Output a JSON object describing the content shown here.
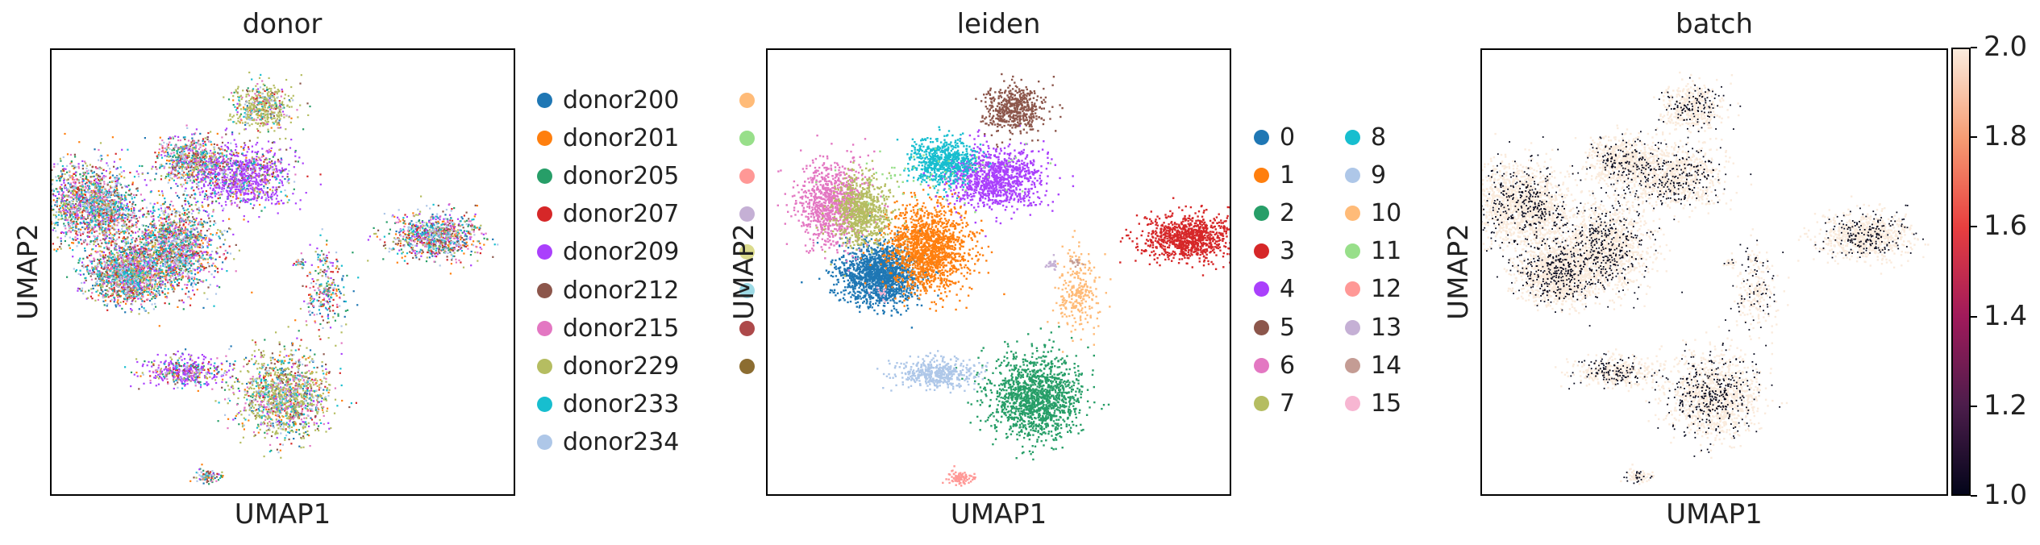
{
  "panels": [
    {
      "title": "donor",
      "xlabel": "UMAP1",
      "ylabel": "UMAP2"
    },
    {
      "title": "leiden",
      "xlabel": "UMAP1",
      "ylabel": "UMAP2"
    },
    {
      "title": "batch",
      "xlabel": "UMAP1",
      "ylabel": "UMAP2"
    }
  ],
  "donor_legend": [
    {
      "label": "donor200",
      "color": "#1f77b4"
    },
    {
      "label": "donor201",
      "color": "#ff7f0e"
    },
    {
      "label": "donor205",
      "color": "#279e68"
    },
    {
      "label": "donor207",
      "color": "#d62728"
    },
    {
      "label": "donor209",
      "color": "#aa40fc"
    },
    {
      "label": "donor212",
      "color": "#8c564b"
    },
    {
      "label": "donor215",
      "color": "#e377c2"
    },
    {
      "label": "donor229",
      "color": "#b5bd61"
    },
    {
      "label": "donor233",
      "color": "#17becf"
    },
    {
      "label": "donor234",
      "color": "#aec7e8"
    }
  ],
  "donor_legend_cut_colors": [
    "#ffbb78",
    "#98df8a",
    "#ff9896",
    "#c5b0d5",
    "#dbdb8d",
    "#9edae5",
    "#ad494a",
    "#8c6d31"
  ],
  "leiden_legend": [
    {
      "label": "0",
      "color": "#1f77b4"
    },
    {
      "label": "1",
      "color": "#ff7f0e"
    },
    {
      "label": "2",
      "color": "#279e68"
    },
    {
      "label": "3",
      "color": "#d62728"
    },
    {
      "label": "4",
      "color": "#aa40fc"
    },
    {
      "label": "5",
      "color": "#8c564b"
    },
    {
      "label": "6",
      "color": "#e377c2"
    },
    {
      "label": "7",
      "color": "#b5bd61"
    },
    {
      "label": "8",
      "color": "#17becf"
    },
    {
      "label": "9",
      "color": "#aec7e8"
    },
    {
      "label": "10",
      "color": "#ffbb78"
    },
    {
      "label": "11",
      "color": "#98df8a"
    },
    {
      "label": "12",
      "color": "#ff9896"
    },
    {
      "label": "13",
      "color": "#c5b0d5"
    },
    {
      "label": "14",
      "color": "#c49c94"
    },
    {
      "label": "15",
      "color": "#f7b6d2"
    }
  ],
  "colorbar": {
    "ticks": [
      "1.0",
      "1.2",
      "1.4",
      "1.6",
      "1.8",
      "2.0"
    ],
    "range": [
      1.0,
      2.0
    ],
    "colors_low_to_high": [
      "#03051a",
      "#4c1d4b",
      "#a11a5b",
      "#e83f3f",
      "#f69c73",
      "#faebdd"
    ]
  },
  "chart_data": [
    {
      "type": "scatter",
      "title": "donor",
      "xlabel": "UMAP1",
      "ylabel": "UMAP2",
      "xticks": [],
      "yticks": [],
      "color_by": "donor",
      "categories": [
        "donor200",
        "donor201",
        "donor205",
        "donor207",
        "donor209",
        "donor212",
        "donor215",
        "donor229",
        "donor233",
        "donor234"
      ],
      "grid": false,
      "legend": "right"
    },
    {
      "type": "scatter",
      "title": "leiden",
      "xlabel": "UMAP1",
      "ylabel": "UMAP2",
      "xticks": [],
      "yticks": [],
      "color_by": "leiden",
      "categories": [
        "0",
        "1",
        "2",
        "3",
        "4",
        "5",
        "6",
        "7",
        "8",
        "9",
        "10",
        "11",
        "12",
        "13",
        "14",
        "15"
      ],
      "grid": false,
      "legend": "right"
    },
    {
      "type": "scatter",
      "title": "batch",
      "xlabel": "UMAP1",
      "ylabel": "UMAP2",
      "xticks": [],
      "yticks": [],
      "color_by": "batch",
      "colorbar_range": [
        1.0,
        2.0
      ],
      "colorbar_ticks": [
        1.0,
        1.2,
        1.4,
        1.6,
        1.8,
        2.0
      ],
      "grid": false,
      "legend": "colorbar right"
    }
  ]
}
